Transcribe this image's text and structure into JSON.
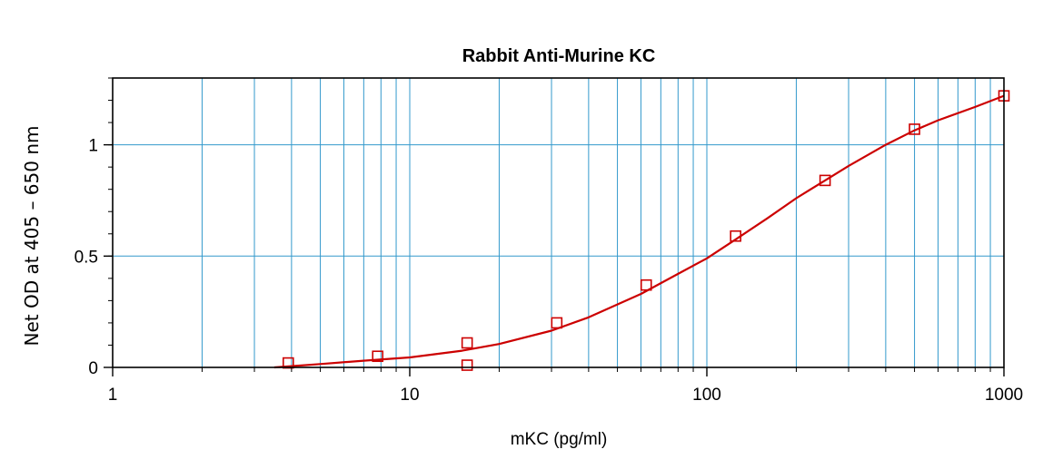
{
  "chart_data": {
    "type": "scatter",
    "title": "Rabbit Anti-Murine KC",
    "xlabel": "mKC (pg/ml)",
    "ylabel": "Net OD at 405 – 650 nm",
    "x_scale": "log",
    "xlim": [
      1,
      1000
    ],
    "ylim": [
      0,
      1.3
    ],
    "x_ticks": [
      {
        "value": 1,
        "label": "1"
      },
      {
        "value": 10,
        "label": "10"
      },
      {
        "value": 100,
        "label": "100"
      },
      {
        "value": 1000,
        "label": "1000"
      }
    ],
    "y_ticks": [
      {
        "value": 0,
        "label": "0"
      },
      {
        "value": 0.5,
        "label": "0.5"
      },
      {
        "value": 1,
        "label": "1"
      }
    ],
    "grid": true,
    "legend": "none",
    "series": [
      {
        "kind": "points",
        "marker": "square",
        "color": "#cc0000",
        "x": [
          3.9,
          7.8,
          15.6,
          15.6,
          31.25,
          62.5,
          125,
          250,
          500,
          1000
        ],
        "y": [
          0.02,
          0.05,
          0.01,
          0.11,
          0.2,
          0.37,
          0.59,
          0.84,
          1.07,
          1.22
        ]
      },
      {
        "kind": "fit-curve",
        "color": "#cc0000",
        "x": [
          3.5,
          5,
          7,
          10,
          15,
          20,
          30,
          40,
          60,
          80,
          100,
          125,
          160,
          200,
          250,
          300,
          400,
          500,
          600,
          800,
          1000
        ],
        "y": [
          0.0,
          0.015,
          0.03,
          0.045,
          0.075,
          0.105,
          0.165,
          0.225,
          0.33,
          0.42,
          0.49,
          0.575,
          0.67,
          0.76,
          0.84,
          0.905,
          1.0,
          1.065,
          1.11,
          1.17,
          1.22
        ]
      }
    ],
    "colors": {
      "grid": "#3399cc",
      "axes": "#000000",
      "data": "#cc0000"
    }
  }
}
